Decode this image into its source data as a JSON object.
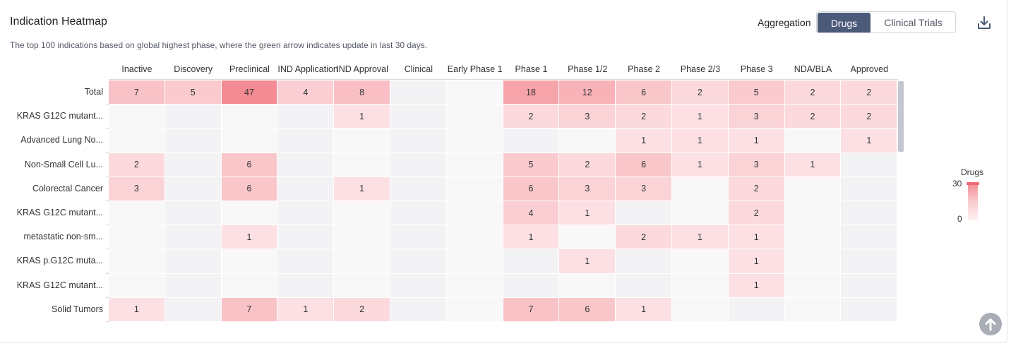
{
  "header": {
    "title": "Indication Heatmap",
    "subtitle": "The top 100 indications based on global highest phase, where the green arrow indicates update in last 30 days.",
    "aggregation_label": "Aggregation",
    "aggregation_options": [
      "Drugs",
      "Clinical Trials"
    ],
    "aggregation_selected": "Drugs"
  },
  "icons": {
    "download": "download-icon",
    "scroll_top": "arrow-up-icon"
  },
  "legend": {
    "title": "Drugs",
    "max": "30",
    "min": "0"
  },
  "colors": {
    "accent": "#4a5a78",
    "heat_max": "#f48a93",
    "heat_min": "#fdf0f1"
  },
  "chart_data": {
    "type": "heatmap",
    "title": "Indication Heatmap",
    "color_range": [
      0,
      30
    ],
    "columns": [
      "Inactive",
      "Discovery",
      "Preclinical",
      "IND Application",
      "IND Approval",
      "Clinical",
      "Early Phase 1",
      "Phase 1",
      "Phase 1/2",
      "Phase 2",
      "Phase 2/3",
      "Phase 3",
      "NDA/BLA",
      "Approved"
    ],
    "rows": [
      {
        "label": "Total",
        "values": [
          7,
          5,
          47,
          4,
          8,
          null,
          null,
          18,
          12,
          6,
          2,
          5,
          2,
          2
        ]
      },
      {
        "label": "KRAS G12C mutant...",
        "values": [
          null,
          null,
          null,
          null,
          1,
          null,
          null,
          2,
          3,
          2,
          1,
          3,
          2,
          2
        ]
      },
      {
        "label": "Advanced Lung No...",
        "values": [
          null,
          null,
          null,
          null,
          null,
          null,
          null,
          null,
          null,
          1,
          1,
          1,
          null,
          1
        ]
      },
      {
        "label": "Non-Small Cell Lu...",
        "values": [
          2,
          null,
          6,
          null,
          null,
          null,
          null,
          5,
          2,
          6,
          1,
          3,
          1,
          null
        ]
      },
      {
        "label": "Colorectal Cancer",
        "values": [
          3,
          null,
          6,
          null,
          1,
          null,
          null,
          6,
          3,
          3,
          null,
          2,
          null,
          null
        ]
      },
      {
        "label": "KRAS G12C mutant...",
        "values": [
          null,
          null,
          null,
          null,
          null,
          null,
          null,
          4,
          1,
          null,
          null,
          2,
          null,
          null
        ]
      },
      {
        "label": "metastatic non-sm...",
        "values": [
          null,
          null,
          1,
          null,
          null,
          null,
          null,
          1,
          null,
          2,
          1,
          1,
          null,
          null
        ]
      },
      {
        "label": "KRAS p.G12C muta...",
        "values": [
          null,
          null,
          null,
          null,
          null,
          null,
          null,
          null,
          1,
          null,
          null,
          1,
          null,
          null
        ]
      },
      {
        "label": "KRAS G12C mutant...",
        "values": [
          null,
          null,
          null,
          null,
          null,
          null,
          null,
          null,
          null,
          null,
          null,
          1,
          null,
          null
        ]
      },
      {
        "label": "Solid Tumors",
        "values": [
          1,
          null,
          7,
          1,
          2,
          null,
          null,
          7,
          6,
          1,
          null,
          null,
          null,
          null
        ]
      }
    ]
  }
}
